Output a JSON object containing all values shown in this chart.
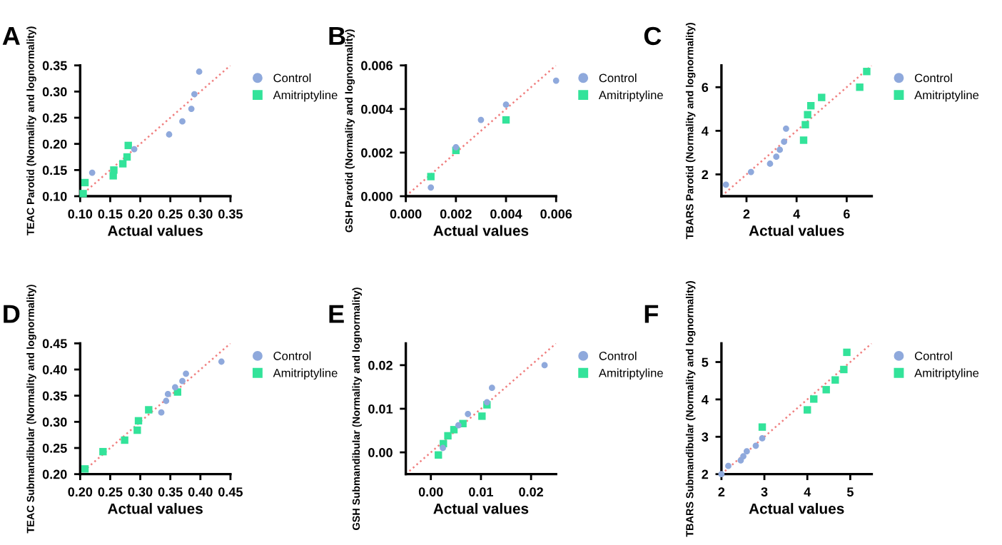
{
  "chart_data": [
    {
      "type": "scatter",
      "title": "A",
      "xlabel": "Actual values",
      "ylabel": "TEAC Parotid (Normality and lognormality)",
      "legend": "right",
      "xlim": [
        0.1,
        0.35
      ],
      "ylim": [
        0.1,
        0.35
      ],
      "xticks": [
        {
          "value": 0.1,
          "label": "0.10"
        },
        {
          "value": 0.15,
          "label": "0.15"
        },
        {
          "value": 0.2,
          "label": "0.20"
        },
        {
          "value": 0.25,
          "label": "0.25"
        },
        {
          "value": 0.3,
          "label": "0.30"
        },
        {
          "value": 0.35,
          "label": "0.35"
        }
      ],
      "yticks": [
        {
          "value": 0.1,
          "label": "0.10"
        },
        {
          "value": 0.15,
          "label": "0.15"
        },
        {
          "value": 0.2,
          "label": "0.20"
        },
        {
          "value": 0.25,
          "label": "0.25"
        },
        {
          "value": 0.3,
          "label": "0.30"
        },
        {
          "value": 0.35,
          "label": "0.35"
        }
      ],
      "series": [
        {
          "name": "Control",
          "color": "#8fa9dc",
          "marker": "circle",
          "x": [
            0.12,
            0.19,
            0.248,
            0.27,
            0.285,
            0.29,
            0.298
          ],
          "values": [
            0.145,
            0.19,
            0.218,
            0.243,
            0.267,
            0.295,
            0.338
          ]
        },
        {
          "name": "Amitriptyline",
          "color": "#33e39a",
          "marker": "square",
          "x": [
            0.105,
            0.108,
            0.155,
            0.156,
            0.171,
            0.178,
            0.18
          ],
          "values": [
            0.105,
            0.126,
            0.139,
            0.15,
            0.162,
            0.175,
            0.197
          ]
        },
        {
          "type": "line",
          "color": "#f08080",
          "line_style": "dotted",
          "x": [
            0.1,
            0.35
          ],
          "values": [
            0.1,
            0.35
          ]
        }
      ]
    },
    {
      "type": "scatter",
      "title": "B",
      "xlabel": "Actual values",
      "ylabel": "GSH Parotid (Normality and lognormality)",
      "legend": "right",
      "xlim": [
        0,
        0.006
      ],
      "ylim": [
        0,
        0.006
      ],
      "xticks": [
        {
          "value": 0,
          "label": "0.000"
        },
        {
          "value": 0.002,
          "label": "0.002"
        },
        {
          "value": 0.004,
          "label": "0.004"
        },
        {
          "value": 0.006,
          "label": "0.006"
        }
      ],
      "yticks": [
        {
          "value": 0,
          "label": "0.000"
        },
        {
          "value": 0.002,
          "label": "0.002"
        },
        {
          "value": 0.004,
          "label": "0.004"
        },
        {
          "value": 0.006,
          "label": "0.006"
        }
      ],
      "series": [
        {
          "name": "Control",
          "color": "#8fa9dc",
          "marker": "circle",
          "x": [
            0.001,
            0.002,
            0.003,
            0.004,
            0.006
          ],
          "values": [
            0.0004,
            0.00225,
            0.0035,
            0.0042,
            0.0053
          ]
        },
        {
          "name": "Amitriptyline",
          "color": "#33e39a",
          "marker": "square",
          "x": [
            0.001,
            0.002,
            0.004
          ],
          "values": [
            0.0009,
            0.0021,
            0.0035
          ]
        },
        {
          "type": "line",
          "color": "#f08080",
          "line_style": "dotted",
          "x": [
            0,
            0.006
          ],
          "values": [
            0,
            0.006
          ]
        }
      ]
    },
    {
      "type": "scatter",
      "title": "C",
      "xlabel": "Actual values",
      "ylabel": "TBARS Parotid (Normality and lognormality)",
      "legend": "right",
      "xlim": [
        1,
        7
      ],
      "ylim": [
        1,
        7
      ],
      "xticks": [
        2,
        4,
        6
      ],
      "yticks": [
        2,
        4,
        6
      ],
      "series": [
        {
          "name": "Control",
          "color": "#8fa9dc",
          "marker": "circle",
          "x": [
            1.18,
            2.18,
            2.94,
            3.19,
            3.33,
            3.5,
            3.58
          ],
          "values": [
            1.53,
            2.11,
            2.49,
            2.81,
            3.13,
            3.5,
            4.1
          ]
        },
        {
          "name": "Amitriptyline",
          "color": "#33e39a",
          "marker": "square",
          "x": [
            4.28,
            4.35,
            4.44,
            4.57,
            5.0,
            6.52,
            6.8
          ],
          "values": [
            3.57,
            4.28,
            4.74,
            5.15,
            5.53,
            6.0,
            6.72
          ]
        },
        {
          "type": "line",
          "color": "#f08080",
          "line_style": "dotted",
          "x": [
            1,
            7
          ],
          "values": [
            1,
            7
          ]
        }
      ]
    },
    {
      "type": "scatter",
      "title": "D",
      "xlabel": "Actual values",
      "ylabel": "TEAC Submandibular (Normality and lognormality)",
      "legend": "right",
      "xlim": [
        0.2,
        0.45
      ],
      "ylim": [
        0.2,
        0.45
      ],
      "xticks": [
        {
          "value": 0.2,
          "label": "0.20"
        },
        {
          "value": 0.25,
          "label": "0.25"
        },
        {
          "value": 0.3,
          "label": "0.30"
        },
        {
          "value": 0.35,
          "label": "0.35"
        },
        {
          "value": 0.4,
          "label": "0.40"
        },
        {
          "value": 0.45,
          "label": "0.45"
        }
      ],
      "yticks": [
        {
          "value": 0.2,
          "label": "0.20"
        },
        {
          "value": 0.25,
          "label": "0.25"
        },
        {
          "value": 0.3,
          "label": "0.30"
        },
        {
          "value": 0.35,
          "label": "0.35"
        },
        {
          "value": 0.4,
          "label": "0.40"
        },
        {
          "value": 0.45,
          "label": "0.45"
        }
      ],
      "series": [
        {
          "name": "Control",
          "color": "#8fa9dc",
          "marker": "circle",
          "x": [
            0.335,
            0.343,
            0.346,
            0.358,
            0.37,
            0.376,
            0.435
          ],
          "values": [
            0.318,
            0.34,
            0.353,
            0.366,
            0.378,
            0.392,
            0.415
          ]
        },
        {
          "name": "Amitriptyline",
          "color": "#33e39a",
          "marker": "square",
          "x": [
            0.208,
            0.238,
            0.274,
            0.295,
            0.297,
            0.314,
            0.362
          ],
          "values": [
            0.21,
            0.243,
            0.265,
            0.284,
            0.302,
            0.323,
            0.357
          ]
        },
        {
          "type": "line",
          "color": "#f08080",
          "line_style": "dotted",
          "x": [
            0.2,
            0.45
          ],
          "values": [
            0.2,
            0.45
          ]
        }
      ]
    },
    {
      "type": "scatter",
      "title": "E",
      "xlabel": "Actual values",
      "ylabel": "GSH Submandibular (Normality and lognormality)",
      "legend": "right",
      "xlim": [
        -0.005,
        0.025
      ],
      "ylim": [
        -0.005,
        0.025
      ],
      "xticks": [
        {
          "value": 0,
          "label": "0.00"
        },
        {
          "value": 0.01,
          "label": "0.01"
        },
        {
          "value": 0.02,
          "label": "0.02"
        }
      ],
      "yticks": [
        {
          "value": 0,
          "label": "0.00"
        },
        {
          "value": 0.01,
          "label": "0.01"
        },
        {
          "value": 0.02,
          "label": "0.02"
        }
      ],
      "series": [
        {
          "name": "Control",
          "color": "#8fa9dc",
          "marker": "circle",
          "x": [
            0.0024,
            0.0055,
            0.0074,
            0.0112,
            0.0122,
            0.0227
          ],
          "values": [
            0.001,
            0.0062,
            0.0088,
            0.0115,
            0.0148,
            0.02
          ]
        },
        {
          "name": "Amitriptyline",
          "color": "#33e39a",
          "marker": "square",
          "x": [
            0.0015,
            0.0025,
            0.0034,
            0.0046,
            0.0064,
            0.0102,
            0.0112
          ],
          "values": [
            -0.0006,
            0.002,
            0.0038,
            0.0052,
            0.0066,
            0.0083,
            0.0109
          ]
        },
        {
          "type": "line",
          "color": "#f08080",
          "line_style": "dotted",
          "x": [
            -0.005,
            0.025
          ],
          "values": [
            -0.005,
            0.025
          ]
        }
      ]
    },
    {
      "type": "scatter",
      "title": "F",
      "xlabel": "Actual values",
      "ylabel": "TBARS Submandibular (Normality and lognormality)",
      "legend": "right",
      "xlim": [
        2,
        5.5
      ],
      "ylim": [
        2,
        5.5
      ],
      "xticks": [
        2,
        3,
        4,
        5
      ],
      "yticks": [
        2,
        3,
        4,
        5
      ],
      "series": [
        {
          "name": "Control",
          "color": "#8fa9dc",
          "marker": "circle",
          "x": [
            2.0,
            2.16,
            2.45,
            2.51,
            2.59,
            2.8,
            2.95
          ],
          "values": [
            2.0,
            2.22,
            2.37,
            2.48,
            2.61,
            2.76,
            2.96
          ]
        },
        {
          "name": "Amitriptyline",
          "color": "#33e39a",
          "marker": "square",
          "x": [
            2.95,
            4.0,
            4.15,
            4.44,
            4.65,
            4.85,
            4.92
          ],
          "values": [
            3.26,
            3.72,
            4.01,
            4.26,
            4.52,
            4.8,
            5.26
          ]
        },
        {
          "type": "line",
          "color": "#f08080",
          "line_style": "dotted",
          "x": [
            2,
            5.5
          ],
          "values": [
            2,
            5.5
          ]
        }
      ]
    }
  ]
}
